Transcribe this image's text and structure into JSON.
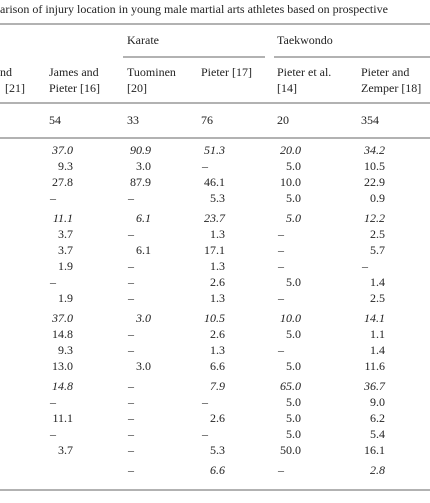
{
  "title": "arison of injury location in young male martial arts athletes based on prospective",
  "groups": [
    "Karate",
    "Taekwondo"
  ],
  "columns": [
    [
      "nd",
      "[21]"
    ],
    [
      "James and",
      "Pieter [16]"
    ],
    [
      "Tuominen",
      "[20]"
    ],
    [
      "Pieter [17]"
    ],
    [
      "Pieter et al.",
      "[14]"
    ],
    [
      "Pieter and",
      "Zemper [18]"
    ]
  ],
  "sample_sizes": [
    null,
    "54",
    "33",
    "76",
    "20",
    "354"
  ],
  "row_groups": [
    [
      [
        "37.0",
        "90.9",
        "51.3",
        "20.0",
        "34.2"
      ],
      [
        "9.3",
        "3.0",
        "–",
        "5.0",
        "10.5"
      ],
      [
        "27.8",
        "87.9",
        "46.1",
        "10.0",
        "22.9"
      ],
      [
        "–",
        "–",
        "5.3",
        "5.0",
        "0.9"
      ]
    ],
    [
      [
        "11.1",
        "6.1",
        "23.7",
        "5.0",
        "12.2"
      ],
      [
        "3.7",
        "–",
        "1.3",
        "–",
        "2.5"
      ],
      [
        "3.7",
        "6.1",
        "17.1",
        "–",
        "5.7"
      ],
      [
        "1.9",
        "–",
        "1.3",
        "–",
        "–"
      ],
      [
        "–",
        "–",
        "2.6",
        "5.0",
        "1.4"
      ],
      [
        "1.9",
        "–",
        "1.3",
        "–",
        "2.5"
      ]
    ],
    [
      [
        "37.0",
        "3.0",
        "10.5",
        "10.0",
        "14.1"
      ],
      [
        "14.8",
        "–",
        "2.6",
        "5.0",
        "1.1"
      ],
      [
        "9.3",
        "–",
        "1.3",
        "–",
        "1.4"
      ],
      [
        "13.0",
        "3.0",
        "6.6",
        "5.0",
        "11.6"
      ]
    ],
    [
      [
        "14.8",
        "–",
        "7.9",
        "65.0",
        "36.7"
      ],
      [
        "–",
        "–",
        "–",
        "5.0",
        "9.0"
      ],
      [
        "11.1",
        "–",
        "2.6",
        "5.0",
        "6.2"
      ],
      [
        "–",
        "–",
        "–",
        "5.0",
        "5.4"
      ],
      [
        "3.7",
        "–",
        "5.3",
        "50.0",
        "16.1"
      ]
    ],
    [
      [
        null,
        "–",
        "6.6",
        "–",
        "2.8"
      ]
    ]
  ]
}
